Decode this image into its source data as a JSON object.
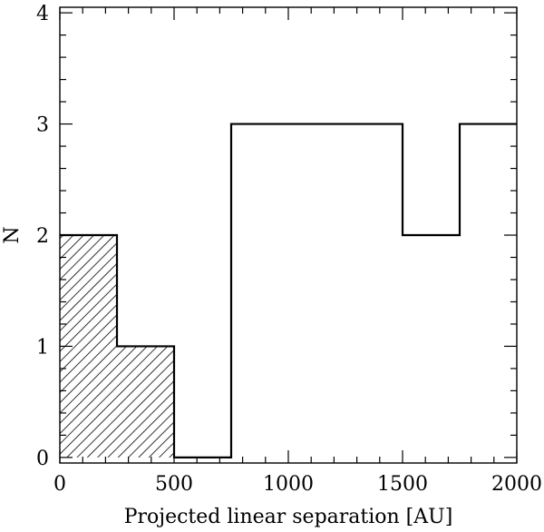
{
  "chart_data": {
    "type": "bar",
    "style": "step-histogram",
    "xlabel": "Projected linear separation [AU]",
    "ylabel": "N",
    "xlim": [
      0,
      2000
    ],
    "ylim": [
      -0.05,
      4.05
    ],
    "x_ticks": [
      0,
      500,
      1000,
      1500,
      2000
    ],
    "x_tick_labels": [
      "0",
      "500",
      "1000",
      "1500",
      "2000"
    ],
    "y_ticks": [
      0,
      1,
      2,
      3,
      4
    ],
    "y_tick_labels": [
      "0",
      "1",
      "2",
      "3",
      "4"
    ],
    "x_minor_step": 100,
    "y_minor_step": 0.2,
    "grid": false,
    "series": [
      {
        "style": "outline",
        "bin_edges": [
          0,
          250,
          500,
          750,
          1000,
          1250,
          1500,
          1750,
          2000
        ],
        "counts": [
          2,
          1,
          0,
          3,
          3,
          3,
          2,
          3
        ]
      },
      {
        "style": "hatched",
        "bin_edges": [
          0,
          250,
          500
        ],
        "counts": [
          2,
          1
        ]
      }
    ]
  }
}
